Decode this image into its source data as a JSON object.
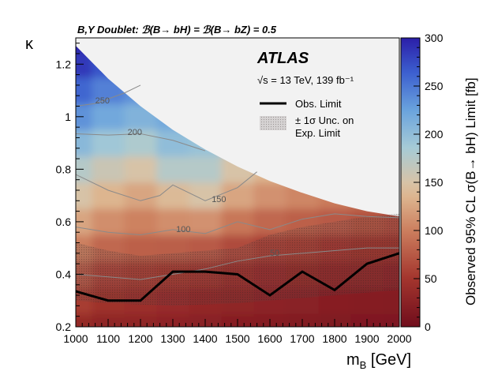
{
  "chart_data": {
    "type": "heatmap",
    "title": "B,Y Doublet:  ℬ(B→ bH) = ℬ(B→ bZ) = 0.5",
    "experiment": "ATLAS",
    "energy_lumi": "√s = 13 TeV, 139 fb⁻¹",
    "xlabel": "m_B [GeV]",
    "xlabel_main": "m",
    "xlabel_sub": "B",
    "xlabel_unit": " [GeV]",
    "ylabel": "κ",
    "zlabel": "Observed 95% CL σ(B→ bH) Limit [fb]",
    "xlim": [
      1000,
      2000
    ],
    "ylim": [
      0.2,
      1.3
    ],
    "zlim": [
      0,
      300
    ],
    "x_ticks": [
      1000,
      1100,
      1200,
      1300,
      1400,
      1500,
      1600,
      1700,
      1800,
      1900,
      2000
    ],
    "y_ticks": [
      0.2,
      0.4,
      0.6,
      0.8,
      1,
      1.2
    ],
    "y_tick_labels": [
      "0.2",
      "0.4",
      "0.6",
      "0.8",
      "1",
      "1.2"
    ],
    "z_ticks": [
      0,
      50,
      100,
      150,
      200,
      250,
      300
    ],
    "legend": {
      "position": "top-right",
      "entries": [
        {
          "label": "Obs. Limit",
          "style": "solid-black-line"
        },
        {
          "label_line1": "± 1σ Unc. on",
          "label_line2": "Exp. Limit",
          "style": "gray-hatched-band"
        }
      ]
    },
    "unphysical_boundary": {
      "description": "kappa values above this curve are not shown",
      "x": [
        1000,
        1100,
        1200,
        1300,
        1400,
        1500,
        1600,
        1700,
        1800,
        1900,
        2000
      ],
      "y": [
        1.27,
        1.145,
        1.04,
        0.95,
        0.875,
        0.81,
        0.755,
        0.71,
        0.67,
        0.64,
        0.62
      ]
    },
    "heatmap_grid": {
      "x": [
        1000,
        1100,
        1200,
        1300,
        1400,
        1500,
        1600,
        1700,
        1800,
        1900,
        2000
      ],
      "y": [
        0.2,
        0.3,
        0.4,
        0.5,
        0.6,
        0.7,
        0.8,
        0.9,
        1.0,
        1.1,
        1.2,
        1.3
      ],
      "z": [
        [
          35,
          30,
          30,
          28,
          25,
          22,
          20,
          18,
          16,
          15,
          14
        ],
        [
          55,
          45,
          42,
          38,
          34,
          30,
          27,
          25,
          23,
          21,
          20
        ],
        [
          75,
          60,
          55,
          52,
          48,
          42,
          38,
          35,
          32,
          30,
          28
        ],
        [
          100,
          85,
          80,
          78,
          75,
          65,
          58,
          55,
          50,
          46,
          44
        ],
        [
          125,
          110,
          102,
          110,
          112,
          95,
          85,
          80,
          75,
          70,
          66
        ],
        [
          150,
          135,
          125,
          140,
          150,
          125,
          112,
          105,
          98,
          92,
          88
        ],
        [
          175,
          160,
          150,
          175,
          175,
          150,
          135,
          125,
          118,
          112,
          108
        ],
        [
          205,
          190,
          180,
          200,
          195,
          170,
          155,
          145,
          140,
          135,
          130
        ],
        [
          235,
          220,
          210,
          220,
          215,
          190,
          175,
          165,
          160,
          155,
          150
        ],
        [
          260,
          245,
          235,
          235,
          230,
          210,
          195,
          185,
          180,
          175,
          170
        ],
        [
          285,
          270,
          260,
          255,
          250,
          230,
          215,
          205,
          200,
          195,
          190
        ],
        [
          300,
          290,
          280,
          275,
          270,
          250,
          235,
          225,
          220,
          215,
          210
        ]
      ]
    },
    "contours": [
      {
        "level": 250,
        "label": "250",
        "label_x": 1060,
        "label_y": 1.05,
        "x": [
          1000,
          1060,
          1150,
          1200
        ],
        "y": [
          1.04,
          1.05,
          1.09,
          1.12
        ]
      },
      {
        "level": 200,
        "label": "200",
        "label_x": 1160,
        "label_y": 0.93,
        "x": [
          1000,
          1100,
          1200,
          1300,
          1400
        ],
        "y": [
          0.935,
          0.93,
          0.935,
          0.91,
          0.87
        ]
      },
      {
        "level": 150,
        "label": "150",
        "label_x": 1420,
        "label_y": 0.675,
        "x": [
          1000,
          1100,
          1200,
          1260,
          1300,
          1400,
          1500,
          1560
        ],
        "y": [
          0.78,
          0.72,
          0.68,
          0.7,
          0.74,
          0.68,
          0.73,
          0.79
        ]
      },
      {
        "level": 100,
        "label": "100",
        "label_x": 1310,
        "label_y": 0.56,
        "x": [
          1000,
          1100,
          1200,
          1300,
          1400,
          1500,
          1600,
          1700,
          1800,
          1900,
          2000
        ],
        "y": [
          0.58,
          0.56,
          0.55,
          0.57,
          0.555,
          0.6,
          0.57,
          0.61,
          0.63,
          0.62,
          0.615
        ]
      },
      {
        "level": 50,
        "label": "50",
        "label_x": 1600,
        "label_y": 0.47,
        "x": [
          1000,
          1100,
          1200,
          1300,
          1400,
          1500,
          1600,
          1700,
          1800,
          1900,
          2000
        ],
        "y": [
          0.4,
          0.39,
          0.38,
          0.4,
          0.42,
          0.45,
          0.47,
          0.48,
          0.49,
          0.5,
          0.5
        ]
      }
    ],
    "observed_limit": {
      "x": [
        1000,
        1100,
        1200,
        1300,
        1400,
        1500,
        1600,
        1700,
        1800,
        1900,
        2000
      ],
      "y": [
        0.335,
        0.3,
        0.3,
        0.41,
        0.41,
        0.4,
        0.32,
        0.41,
        0.34,
        0.44,
        0.48
      ]
    },
    "expected_band": {
      "x": [
        1000,
        1100,
        1200,
        1300,
        1400,
        1500,
        1600,
        1700,
        1800,
        1900,
        2000
      ],
      "upper": [
        0.52,
        0.49,
        0.47,
        0.48,
        0.49,
        0.5,
        0.55,
        0.58,
        0.6,
        0.62,
        0.63
      ],
      "lower": [
        0.3,
        0.29,
        0.285,
        0.28,
        0.285,
        0.29,
        0.3,
        0.31,
        0.32,
        0.33,
        0.34
      ]
    }
  }
}
